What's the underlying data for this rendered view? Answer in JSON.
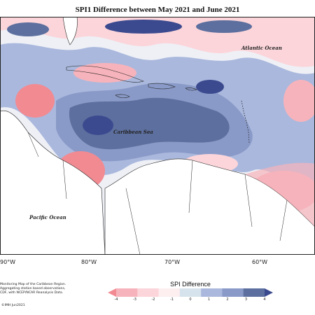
{
  "title": "SPI1 Difference between May 2021 and June 2021",
  "map": {
    "ocean_labels": {
      "atlantic": "Atlantic Ocean",
      "caribbean": "Caribbean Sea",
      "pacific": "Pacific Ocean"
    },
    "longitude_labels": [
      "90°W",
      "80°W",
      "70°W",
      "60°W"
    ]
  },
  "credits": {
    "lines": [
      "Monitoring Map of the Caribbean Region.",
      "Aggregating station based observations,",
      "CDF, with NCEP/NCAR Reanalysis Data."
    ],
    "copyright": "©IMH Jun2021"
  },
  "legend": {
    "title": "SPI Difference",
    "ticks": [
      "-4",
      "-3",
      "-2",
      "-1",
      "0",
      "1",
      "2",
      "3",
      "4"
    ],
    "colors": [
      "#f28a92",
      "#f7b3bb",
      "#fbd5da",
      "#fdeef0",
      "#d6e3ec",
      "#aab8dd",
      "#8a9ac8",
      "#5d6f9e",
      "#3b4a8f"
    ]
  }
}
